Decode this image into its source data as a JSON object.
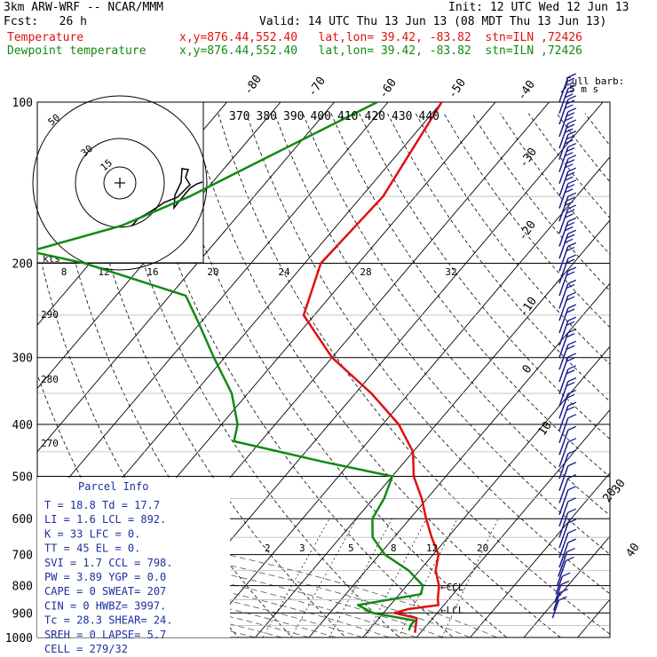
{
  "header": {
    "model": "3km ARW-WRF -- NCAR/MMM",
    "init": "Init: 12 UTC Wed 12 Jun 13",
    "fcst": "Fcst:   26 h",
    "valid": "Valid: 14 UTC Thu 13 Jun 13 (08 MDT Thu 13 Jun 13)",
    "temp_label": "Temperature",
    "dew_label": "Dewpoint temperature",
    "temp_loc": "x,y=876.44,552.40   lat,lon= 39.42, -83.82  stn=ILN ,72426",
    "dew_loc": "x,y=876.44,552.40   lat,lon= 39.42, -83.82  stn=ILN ,72426"
  },
  "colors": {
    "temperature": "#e01010",
    "dewpoint": "#128a12",
    "barbs": "#1a1a8c",
    "parcel_info": "#1c2fa0"
  },
  "chart_data": {
    "type": "line",
    "subtype": "skew-T log-P diagram",
    "y_axis": {
      "scale": "log",
      "unit": "hPa",
      "ticks": [
        100,
        200,
        300,
        400,
        500,
        600,
        700,
        800,
        900,
        1000
      ]
    },
    "isotherm_labels": [
      "-80",
      "-70",
      "-60",
      "-50",
      "-40",
      "-30",
      "-20",
      "-10",
      "0",
      "10",
      "20",
      "30",
      "40"
    ],
    "series": [
      {
        "name": "Temperature",
        "points": [
          [
            100,
            -60
          ],
          [
            150,
            -56
          ],
          [
            200,
            -57
          ],
          [
            250,
            -52
          ],
          [
            300,
            -40
          ],
          [
            350,
            -27
          ],
          [
            400,
            -17
          ],
          [
            450,
            -10
          ],
          [
            500,
            -6
          ],
          [
            550,
            -1
          ],
          [
            600,
            3
          ],
          [
            650,
            7
          ],
          [
            700,
            11
          ],
          [
            750,
            13
          ],
          [
            800,
            16
          ],
          [
            850,
            18
          ],
          [
            870,
            19
          ],
          [
            885,
            14
          ],
          [
            900,
            12
          ],
          [
            920,
            17
          ],
          [
            950,
            18
          ],
          [
            980,
            19
          ]
        ]
      },
      {
        "name": "Dewpoint temperature",
        "points": [
          [
            100,
            -72
          ],
          [
            130,
            -85
          ],
          [
            150,
            -92
          ],
          [
            170,
            -100
          ],
          [
            190,
            -113
          ],
          [
            200,
            -101
          ],
          [
            230,
            -77
          ],
          [
            260,
            -70
          ],
          [
            300,
            -62
          ],
          [
            350,
            -53
          ],
          [
            400,
            -47
          ],
          [
            430,
            -45
          ],
          [
            470,
            -25
          ],
          [
            500,
            -10
          ],
          [
            550,
            -8
          ],
          [
            600,
            -7
          ],
          [
            650,
            -4
          ],
          [
            700,
            1
          ],
          [
            750,
            8
          ],
          [
            800,
            13
          ],
          [
            830,
            14
          ],
          [
            870,
            4
          ],
          [
            900,
            8
          ],
          [
            930,
            17
          ],
          [
            950,
            17
          ],
          [
            970,
            17.5
          ]
        ]
      }
    ],
    "hodograph": {
      "ring_labels": [
        "50",
        "30",
        "15"
      ],
      "speed_axis_label": "kts",
      "speed_ticks": [
        "8",
        "12",
        "16",
        "20",
        "24",
        "28",
        "32"
      ]
    },
    "mixing_ratio_labels": [
      "2",
      "3",
      "5",
      "8",
      "12",
      "20"
    ],
    "theta_labels": [
      "370",
      "380",
      "390",
      "400",
      "410",
      "420",
      "430",
      "440"
    ],
    "adiabat_side_labels": [
      "290",
      "280",
      "270"
    ],
    "annotations": [
      "CCL",
      "LCL"
    ],
    "wind_barb_legend": {
      "title": "Full barb:",
      "value": "5 m s"
    },
    "wind_barb_pressures": [
      100,
      105,
      110,
      116,
      122,
      128,
      135,
      142,
      150,
      158,
      167,
      176,
      186,
      196,
      207,
      218,
      230,
      243,
      256,
      270,
      285,
      300,
      316,
      333,
      351,
      370,
      390,
      411,
      433,
      456,
      480,
      505,
      532,
      561,
      590,
      620,
      650,
      680,
      710,
      740,
      770,
      800,
      830,
      860,
      890,
      920
    ]
  },
  "parcel_info": {
    "title": "Parcel Info",
    "rows": [
      "T  =   18.8  Td =  17.7",
      "LI =    1.6  LCL =  892.",
      "K  =     33  LFC =    0.",
      "TT =     45  EL  =    0.",
      "SVI =   1.7  CCL =  798.",
      "PW =   3.89  YGP =  0.0",
      "CAPE =    0  SWEAT=  207",
      "CIN =     0  HWBZ= 3997.",
      "Tc =   28.3  SHEAR=  24.",
      "SREH =    0  LAPSE=  5.7",
      "CELL = 279/32"
    ]
  }
}
